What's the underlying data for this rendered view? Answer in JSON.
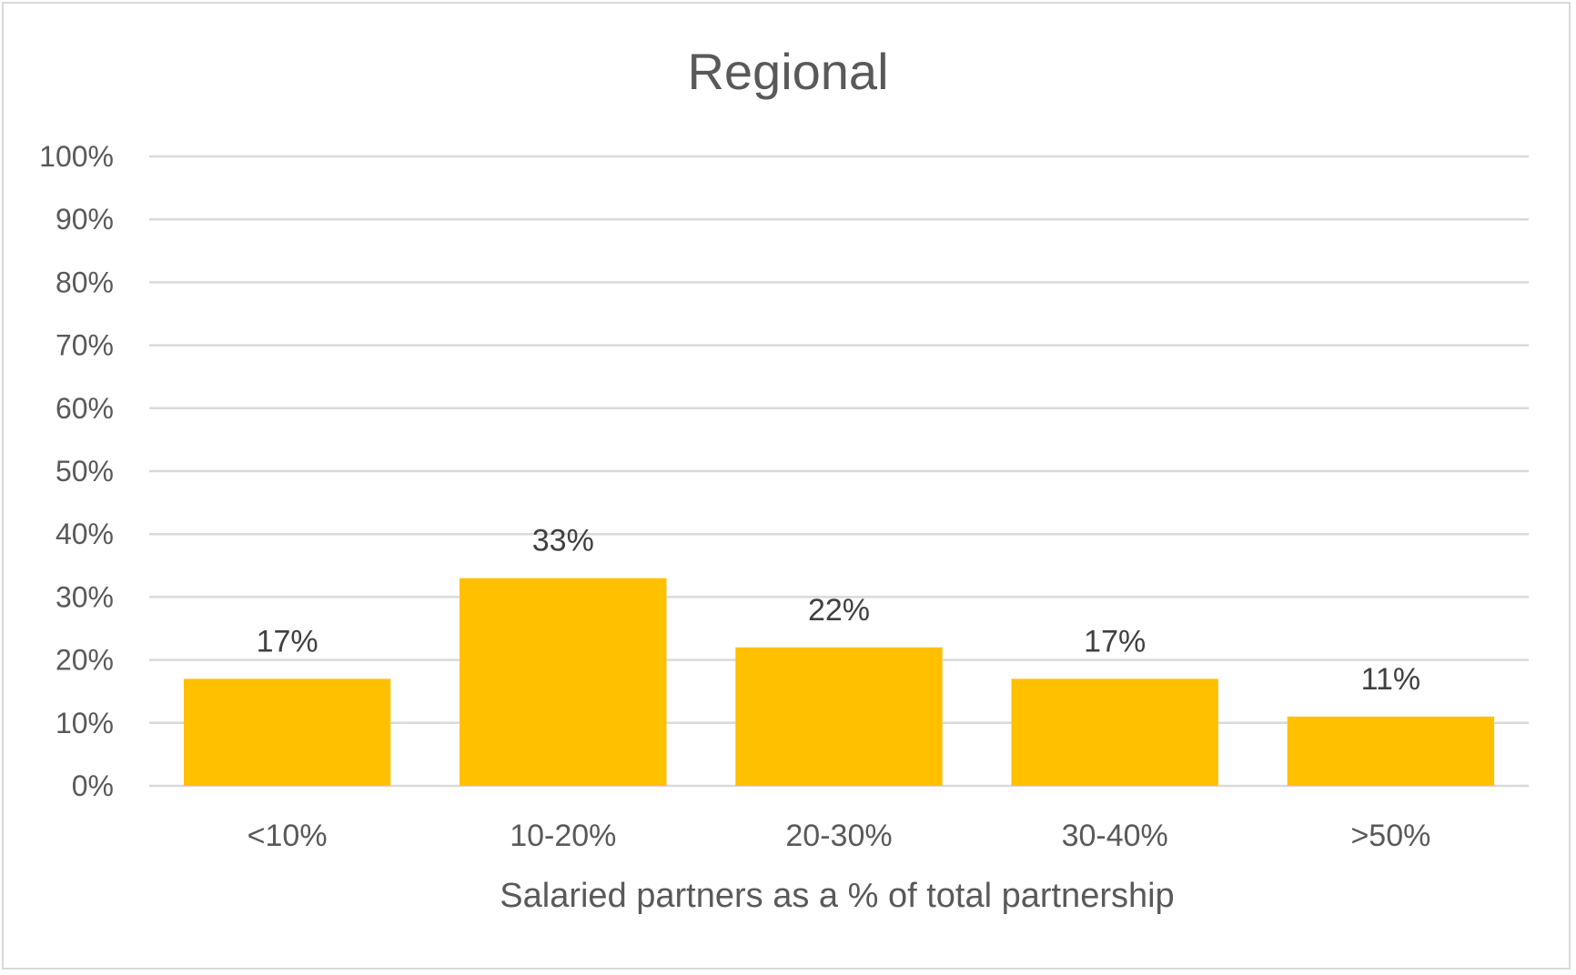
{
  "chart_data": {
    "type": "bar",
    "title": "Regional",
    "xlabel": "Salaried partners as a % of total partnership",
    "ylabel": "",
    "categories": [
      "<10%",
      "10-20%",
      "20-30%",
      "30-40%",
      ">50%"
    ],
    "values": [
      17,
      33,
      22,
      17,
      11
    ],
    "data_labels": [
      "17%",
      "33%",
      "22%",
      "17%",
      "11%"
    ],
    "ylim": [
      0,
      100
    ],
    "yticks": [
      0,
      10,
      20,
      30,
      40,
      50,
      60,
      70,
      80,
      90,
      100
    ],
    "ytick_labels": [
      "0%",
      "10%",
      "20%",
      "30%",
      "40%",
      "50%",
      "60%",
      "70%",
      "80%",
      "90%",
      "100%"
    ],
    "grid": true,
    "legend": "none",
    "bar_color": "#FFC000"
  }
}
